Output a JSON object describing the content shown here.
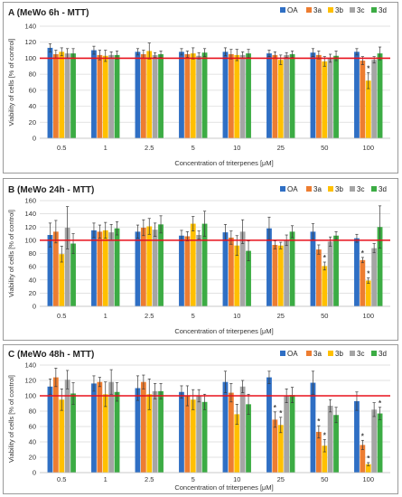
{
  "colors": {
    "OA": "#2f6fc4",
    "3a": "#ed7d31",
    "3b": "#ffc000",
    "3c": "#a5a5a5",
    "3d": "#3cac44",
    "reference_line": "#e8101b"
  },
  "chart_data": [
    {
      "type": "bar",
      "title": "A (MeWo 6h - MTT)",
      "xlabel": "Concentration of triterpenes [μM]",
      "ylabel": "Viability of cells [% of control]",
      "ylim": [
        0,
        140
      ],
      "yticks": [
        0,
        20,
        40,
        60,
        80,
        100,
        120,
        140
      ],
      "grid": true,
      "legend": "top-right",
      "reference_line": 100,
      "categories": [
        "0.5",
        "1",
        "2.5",
        "5",
        "10",
        "25",
        "50",
        "100"
      ],
      "series": [
        {
          "name": "OA",
          "values": [
            113,
            110,
            108,
            108,
            108,
            106,
            107,
            108
          ],
          "errors": [
            5,
            5,
            4,
            4,
            5,
            4,
            5,
            4
          ]
        },
        {
          "name": "3a",
          "values": [
            105,
            104,
            105,
            105,
            105,
            104,
            104,
            97
          ],
          "errors": [
            5,
            6,
            5,
            4,
            6,
            4,
            5,
            5
          ]
        },
        {
          "name": "3b",
          "values": [
            108,
            103,
            109,
            106,
            104,
            98,
            96,
            72
          ],
          "errors": [
            5,
            7,
            10,
            7,
            7,
            6,
            6,
            10
          ]
        },
        {
          "name": "3c",
          "values": [
            106,
            104,
            104,
            103,
            104,
            104,
            100,
            98
          ],
          "errors": [
            6,
            4,
            3,
            4,
            4,
            3,
            5,
            4
          ]
        },
        {
          "name": "3d",
          "values": [
            106,
            104,
            105,
            107,
            106,
            105,
            103,
            106
          ],
          "errors": [
            6,
            5,
            4,
            5,
            5,
            4,
            6,
            8
          ]
        }
      ],
      "significance": [
        {
          "category": "100",
          "series": "3b",
          "label": "*"
        }
      ]
    },
    {
      "type": "bar",
      "title": "B (MeWo 24h - MTT)",
      "xlabel": "Concentration of triterpenes [μM]",
      "ylabel": "Viability of cells [% of control]",
      "ylim": [
        0,
        160
      ],
      "yticks": [
        0,
        20,
        40,
        60,
        80,
        100,
        120,
        140,
        160
      ],
      "grid": true,
      "legend": "top-right",
      "reference_line": 100,
      "categories": [
        "0.5",
        "1",
        "2.5",
        "5",
        "10",
        "25",
        "50",
        "100"
      ],
      "series": [
        {
          "name": "OA",
          "values": [
            108,
            115,
            113,
            107,
            112,
            118,
            113,
            103
          ],
          "errors": [
            18,
            11,
            10,
            8,
            12,
            17,
            12,
            6
          ]
        },
        {
          "name": "3a",
          "values": [
            113,
            113,
            119,
            106,
            104,
            93,
            86,
            70
          ],
          "errors": [
            17,
            10,
            12,
            7,
            10,
            6,
            7,
            4
          ]
        },
        {
          "name": "3b",
          "values": [
            79,
            115,
            121,
            125,
            92,
            92,
            61,
            39
          ],
          "errors": [
            12,
            12,
            12,
            11,
            15,
            5,
            6,
            4
          ]
        },
        {
          "name": "3c",
          "values": [
            119,
            112,
            116,
            108,
            113,
            100,
            98,
            88
          ],
          "errors": [
            32,
            12,
            10,
            6,
            18,
            8,
            7,
            7
          ]
        },
        {
          "name": "3d",
          "values": [
            95,
            118,
            124,
            125,
            84,
            113,
            107,
            120
          ],
          "errors": [
            15,
            10,
            13,
            19,
            15,
            9,
            6,
            32
          ]
        }
      ],
      "significance": [
        {
          "category": "50",
          "series": "3b",
          "label": "*"
        },
        {
          "category": "100",
          "series": "3a",
          "label": "*"
        },
        {
          "category": "100",
          "series": "3b",
          "label": "*"
        }
      ]
    },
    {
      "type": "bar",
      "title": "C (MeWo 48h - MTT)",
      "xlabel": "Concentration of triterpenes [μM]",
      "ylabel": "Viability of cells [% of control]",
      "ylim": [
        0,
        140
      ],
      "yticks": [
        0,
        20,
        40,
        60,
        80,
        100,
        120,
        140
      ],
      "grid": true,
      "legend": "top-right",
      "reference_line": 100,
      "categories": [
        "0.5",
        "1",
        "2.5",
        "5",
        "10",
        "25",
        "50",
        "100"
      ],
      "series": [
        {
          "name": "OA",
          "values": [
            112,
            116,
            110,
            105,
            118,
            124,
            117,
            93
          ],
          "errors": [
            10,
            10,
            16,
            8,
            14,
            8,
            15,
            12
          ]
        },
        {
          "name": "3a",
          "values": [
            124,
            118,
            118,
            100,
            104,
            69,
            53,
            36
          ],
          "errors": [
            12,
            6,
            9,
            13,
            12,
            10,
            8,
            6
          ]
        },
        {
          "name": "3b",
          "values": [
            95,
            102,
            102,
            95,
            76,
            62,
            35,
            11
          ],
          "errors": [
            14,
            16,
            20,
            13,
            13,
            10,
            8,
            2
          ]
        },
        {
          "name": "3c",
          "values": [
            121,
            118,
            106,
            100,
            112,
            100,
            87,
            82
          ],
          "errors": [
            12,
            16,
            10,
            8,
            8,
            9,
            8,
            9
          ]
        },
        {
          "name": "3d",
          "values": [
            103,
            105,
            106,
            92,
            89,
            101,
            75,
            77
          ],
          "errors": [
            14,
            12,
            10,
            10,
            13,
            10,
            10,
            8
          ]
        }
      ],
      "significance": [
        {
          "category": "25",
          "series": "3a",
          "label": "*"
        },
        {
          "category": "25",
          "series": "3b",
          "label": "*"
        },
        {
          "category": "50",
          "series": "3a",
          "label": "*"
        },
        {
          "category": "50",
          "series": "3b",
          "label": "*"
        },
        {
          "category": "100",
          "series": "3a",
          "label": "*"
        },
        {
          "category": "100",
          "series": "3b",
          "label": "*"
        },
        {
          "category": "100",
          "series": "3d",
          "label": "*"
        }
      ]
    }
  ]
}
